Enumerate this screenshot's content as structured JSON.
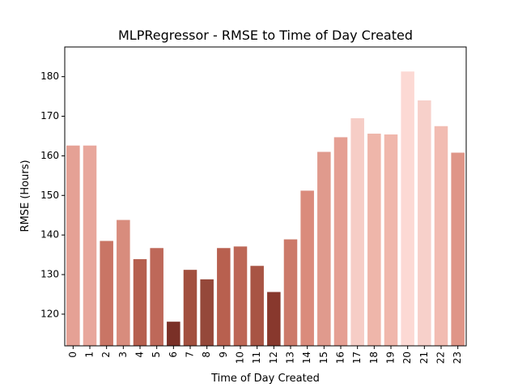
{
  "chart_data": {
    "type": "bar",
    "title": "MLPRegressor - RMSE to Time of Day Created",
    "xlabel": "Time of Day Created",
    "ylabel": "RMSE (Hours)",
    "categories": [
      "0",
      "1",
      "2",
      "3",
      "4",
      "5",
      "6",
      "7",
      "8",
      "9",
      "10",
      "11",
      "12",
      "13",
      "14",
      "15",
      "16",
      "17",
      "18",
      "19",
      "20",
      "21",
      "22",
      "23"
    ],
    "values": [
      162.6,
      162.6,
      138.5,
      143.8,
      133.9,
      136.7,
      118.1,
      131.2,
      128.8,
      136.7,
      137.1,
      132.2,
      125.6,
      138.9,
      151.2,
      161.0,
      164.7,
      169.5,
      165.6,
      165.4,
      181.3,
      174.0,
      167.5,
      160.8
    ],
    "colors": [
      "#e5a195",
      "#e8a79c",
      "#c97565",
      "#d88c7d",
      "#b6604f",
      "#be6859",
      "#7a3027",
      "#a2503f",
      "#95483a",
      "#b8604f",
      "#bd6756",
      "#a85444",
      "#88382d",
      "#cc7a6a",
      "#da8b7c",
      "#e09a8d",
      "#e59f93",
      "#f6cdc6",
      "#efb6aa",
      "#f0b7ac",
      "#fcd9d4",
      "#f7d0ca",
      "#f2bcb2",
      "#df9587"
    ],
    "ylim": [
      112,
      187.5
    ],
    "yticks": [
      120,
      130,
      140,
      150,
      160,
      170,
      180
    ],
    "grid": false,
    "legend": "none"
  }
}
